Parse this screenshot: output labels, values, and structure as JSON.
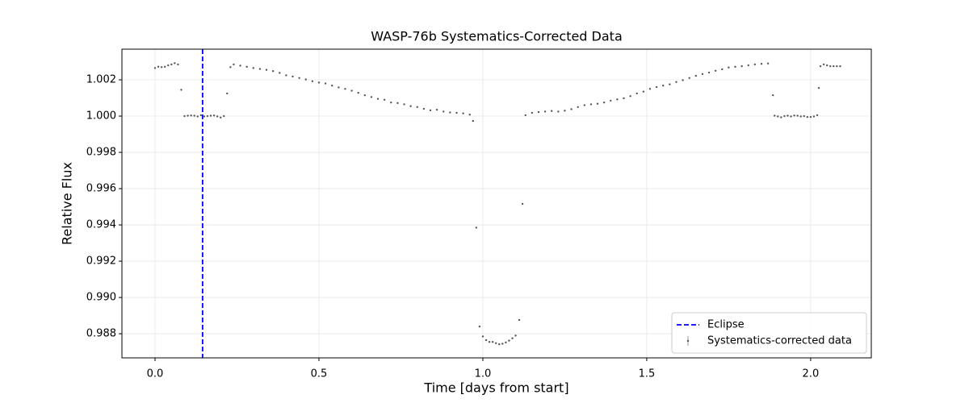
{
  "chart_data": {
    "type": "scatter",
    "title": "WASP-76b Systematics-Corrected Data",
    "x_label": "Time [days from start]",
    "y_label": "Relative Flux",
    "xlim": [
      -0.101,
      2.185
    ],
    "ylim": [
      0.98667,
      1.00369
    ],
    "xticks": [
      {
        "value": 0,
        "label": "0.0"
      },
      0.5,
      {
        "value": 1,
        "label": "1.0"
      },
      1.5,
      {
        "value": 2,
        "label": "2.0"
      }
    ],
    "yticks": [
      0.988,
      {
        "value": 0.99,
        "label": "0.990"
      },
      0.992,
      0.994,
      0.996,
      0.998,
      {
        "value": 1,
        "label": "1.000"
      },
      1.002
    ],
    "grid": true,
    "legend": "lower right",
    "vlines": [
      {
        "name": "Eclipse",
        "x": 0.145,
        "color": "#0000ff",
        "dashed": true
      }
    ],
    "x": [
      0.0,
      0.01,
      0.02,
      0.03,
      0.04,
      0.05,
      0.06,
      0.07,
      0.08,
      0.09,
      0.1,
      0.11,
      0.12,
      0.13,
      0.14,
      0.15,
      0.16,
      0.17,
      0.18,
      0.19,
      0.2,
      0.21,
      0.22,
      0.23,
      0.24,
      0.26,
      0.28,
      0.3,
      0.32,
      0.34,
      0.36,
      0.38,
      0.4,
      0.42,
      0.44,
      0.46,
      0.48,
      0.5,
      0.52,
      0.54,
      0.56,
      0.58,
      0.6,
      0.62,
      0.64,
      0.66,
      0.68,
      0.7,
      0.72,
      0.74,
      0.76,
      0.78,
      0.8,
      0.82,
      0.84,
      0.86,
      0.88,
      0.9,
      0.92,
      0.94,
      0.96,
      0.97,
      0.98,
      0.99,
      1.0,
      1.01,
      1.02,
      1.03,
      1.04,
      1.05,
      1.06,
      1.07,
      1.08,
      1.09,
      1.1,
      1.111,
      1.121,
      1.13,
      1.15,
      1.17,
      1.19,
      1.21,
      1.23,
      1.25,
      1.27,
      1.29,
      1.31,
      1.33,
      1.35,
      1.37,
      1.39,
      1.41,
      1.43,
      1.45,
      1.47,
      1.49,
      1.51,
      1.53,
      1.55,
      1.57,
      1.59,
      1.61,
      1.63,
      1.65,
      1.67,
      1.69,
      1.71,
      1.73,
      1.75,
      1.77,
      1.79,
      1.81,
      1.83,
      1.85,
      1.87,
      1.885,
      1.89,
      1.9,
      1.91,
      1.92,
      1.93,
      1.94,
      1.95,
      1.96,
      1.97,
      1.98,
      1.99,
      2.0,
      2.01,
      2.02,
      2.025,
      2.03,
      2.04,
      2.05,
      2.06,
      2.07,
      2.08,
      2.09
    ],
    "series": [
      {
        "name": "Systematics-corrected data",
        "color": "#555555",
        "values": [
          1.00265,
          1.00272,
          1.0027,
          1.00272,
          1.0028,
          1.00285,
          1.00292,
          1.00285,
          1.00145,
          1.0,
          1.00002,
          1.00003,
          1.00002,
          0.99998,
          1.00005,
          0.99998,
          1.0,
          1.00002,
          1.00003,
          0.99998,
          0.99992,
          1.0,
          1.00125,
          1.0027,
          1.00285,
          1.00278,
          1.00272,
          1.00265,
          1.0026,
          1.00255,
          1.00248,
          1.00238,
          1.00225,
          1.00218,
          1.0021,
          1.00202,
          1.00192,
          1.00185,
          1.0018,
          1.00168,
          1.00158,
          1.0015,
          1.0014,
          1.00128,
          1.00115,
          1.00105,
          1.00095,
          1.0009,
          1.00075,
          1.00072,
          1.00065,
          1.00055,
          1.0005,
          1.0004,
          1.00032,
          1.00035,
          1.00025,
          1.0002,
          1.00018,
          1.00015,
          1.00008,
          0.99973,
          0.99385,
          0.9884,
          0.98785,
          0.98765,
          0.98755,
          0.98755,
          0.98748,
          0.98742,
          0.98745,
          0.98752,
          0.98762,
          0.98775,
          0.9879,
          0.98876,
          0.99516,
          1.00005,
          1.00018,
          1.00022,
          1.00025,
          1.00028,
          1.00025,
          1.0003,
          1.00038,
          1.0005,
          1.0006,
          1.00065,
          1.00068,
          1.00075,
          1.00085,
          1.00092,
          1.00098,
          1.0011,
          1.00125,
          1.00135,
          1.0015,
          1.0016,
          1.00168,
          1.00175,
          1.00188,
          1.00198,
          1.0021,
          1.00222,
          1.00232,
          1.0024,
          1.0025,
          1.00258,
          1.00268,
          1.00272,
          1.00275,
          1.0028,
          1.00285,
          1.00288,
          1.0029,
          1.00115,
          1.00002,
          0.99998,
          0.99993,
          1.0,
          1.00002,
          0.99998,
          1.00003,
          1.00002,
          0.99998,
          1.0,
          0.99995,
          0.99995,
          0.99998,
          1.00005,
          1.00155,
          1.00275,
          1.00285,
          1.0028,
          1.00275,
          1.00275,
          1.00275,
          1.00275
        ]
      }
    ]
  }
}
